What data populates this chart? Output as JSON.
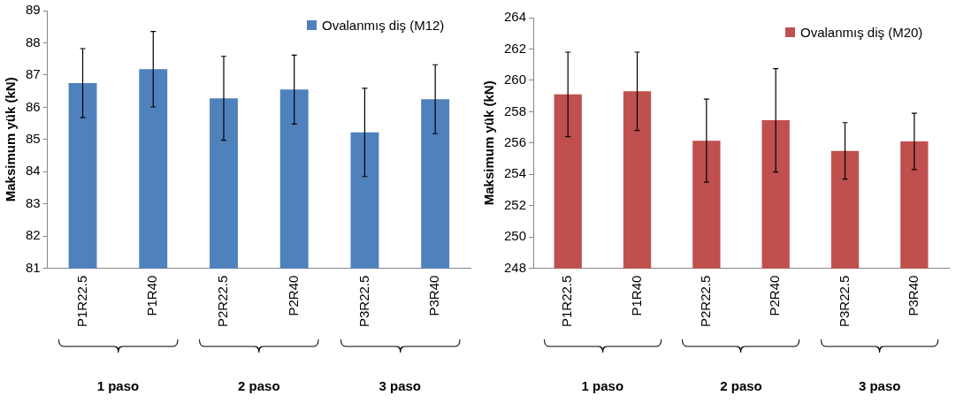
{
  "chart_data": [
    {
      "type": "bar",
      "ylabel": "Maksimum yük (kN)",
      "categories": [
        "P1R22.5",
        "P1R40",
        "P2R22.5",
        "P2R40",
        "P3R22.5",
        "P3R40"
      ],
      "series": [
        {
          "name": "Ovalanmış diş (M12)",
          "color": "#4f81bd",
          "values": [
            86.75,
            87.18,
            86.28,
            86.55,
            85.22,
            86.25
          ],
          "errors": [
            1.07,
            1.17,
            1.3,
            1.07,
            1.37,
            1.07
          ]
        }
      ],
      "ylim": [
        81,
        89
      ],
      "yticks": [
        81,
        82,
        83,
        84,
        85,
        86,
        87,
        88,
        89
      ],
      "grid": false,
      "legend": "top right",
      "annotations": [
        "1 paso",
        "2 paso",
        "3 paso"
      ]
    },
    {
      "type": "bar",
      "ylabel": "Maksimum yük (kN)",
      "categories": [
        "P1R22.5",
        "P1R40",
        "P2R22.5",
        "P2R40",
        "P3R22.5",
        "P3R40"
      ],
      "series": [
        {
          "name": "Ovalanmış diş (M20)",
          "color": "#c0504d",
          "values": [
            259.1,
            259.3,
            256.15,
            257.45,
            255.5,
            256.1
          ],
          "errors": [
            2.7,
            2.5,
            2.65,
            3.3,
            1.8,
            1.8
          ]
        }
      ],
      "ylim": [
        248,
        264
      ],
      "yticks": [
        248,
        250,
        252,
        254,
        256,
        258,
        260,
        262,
        264
      ],
      "grid": false,
      "legend": "top right",
      "annotations": [
        "1 paso",
        "2 paso",
        "3 paso"
      ]
    }
  ]
}
